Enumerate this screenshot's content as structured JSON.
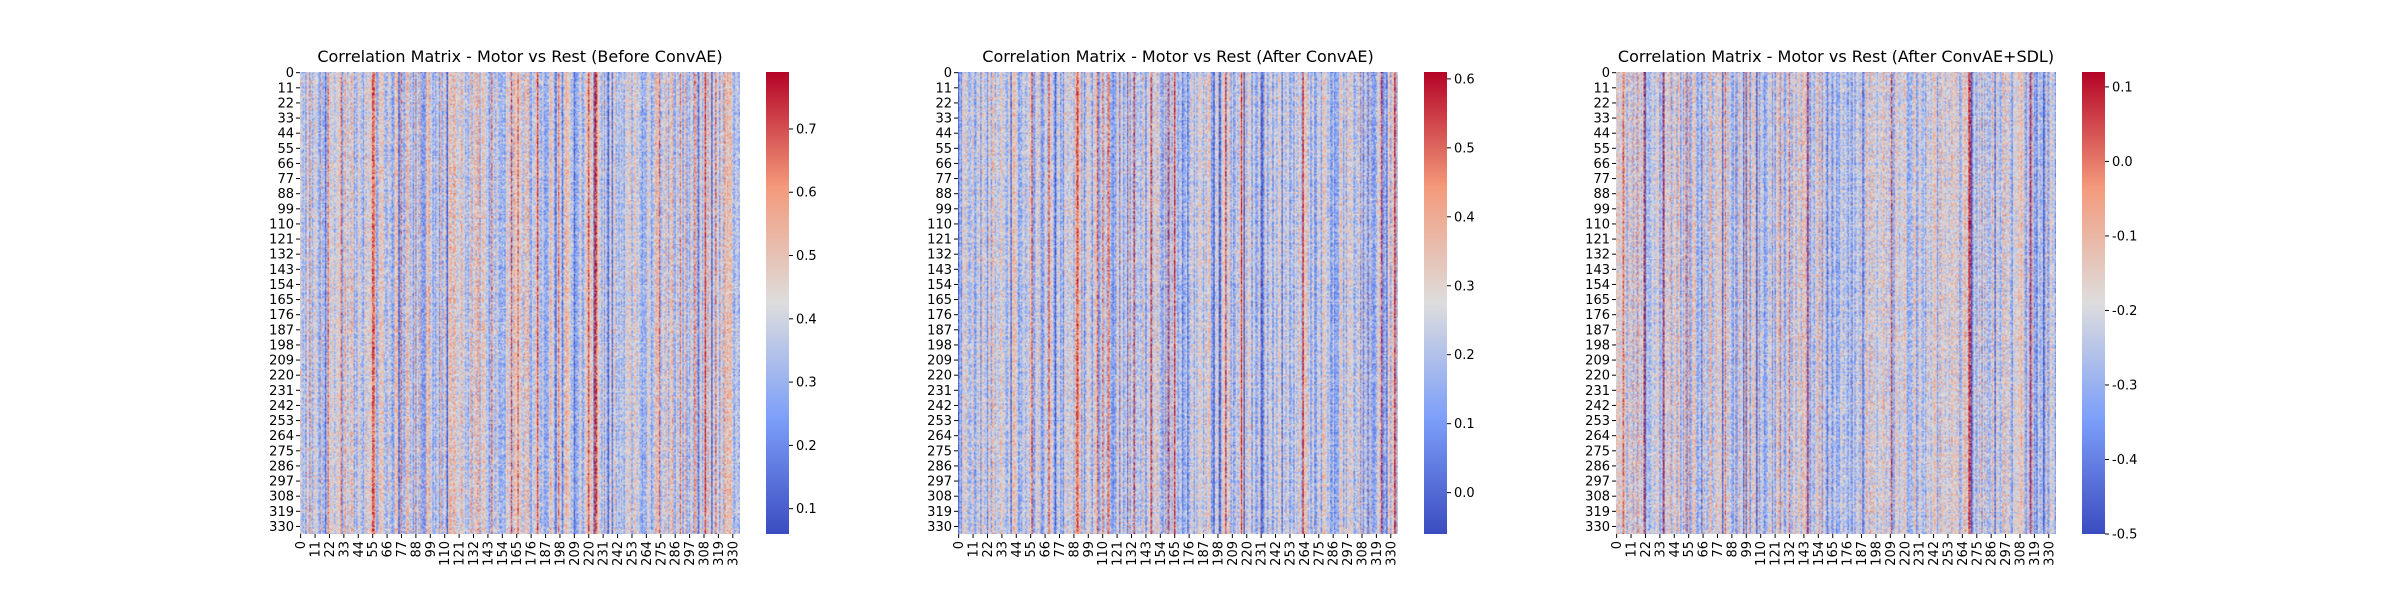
{
  "chart_data": [
    {
      "type": "heatmap",
      "title": "Correlation Matrix - Motor vs Rest (Before ConvAE)",
      "tick_labels": [
        "0",
        "11",
        "22",
        "33",
        "44",
        "55",
        "66",
        "77",
        "88",
        "99",
        "110",
        "121",
        "132",
        "143",
        "154",
        "165",
        "176",
        "187",
        "198",
        "209",
        "220",
        "231",
        "242",
        "253",
        "264",
        "275",
        "286",
        "297",
        "308",
        "319",
        "330"
      ],
      "matrix_size": 336,
      "colormap": "coolwarm",
      "colorbar": {
        "min": 0.06,
        "max": 0.79,
        "ticks": [
          0.1,
          0.2,
          0.3,
          0.4,
          0.5,
          0.6,
          0.7
        ],
        "tick_labels": [
          "0.1",
          "0.2",
          "0.3",
          "0.4",
          "0.5",
          "0.6",
          "0.7"
        ]
      },
      "base_value": 0.4
    },
    {
      "type": "heatmap",
      "title": "Correlation Matrix - Motor vs Rest (After ConvAE)",
      "tick_labels": [
        "0",
        "11",
        "22",
        "33",
        "44",
        "55",
        "66",
        "77",
        "88",
        "99",
        "110",
        "121",
        "132",
        "143",
        "154",
        "165",
        "176",
        "187",
        "198",
        "209",
        "220",
        "231",
        "242",
        "253",
        "264",
        "275",
        "286",
        "297",
        "308",
        "319",
        "330"
      ],
      "matrix_size": 336,
      "colormap": "coolwarm",
      "colorbar": {
        "min": -0.06,
        "max": 0.61,
        "ticks": [
          0.0,
          0.1,
          0.2,
          0.3,
          0.4,
          0.5,
          0.6
        ],
        "tick_labels": [
          "0.0",
          "0.1",
          "0.2",
          "0.3",
          "0.4",
          "0.5",
          "0.6"
        ]
      },
      "base_value": 0.22
    },
    {
      "type": "heatmap",
      "title": "Correlation Matrix - Motor vs Rest (After ConvAE+SDL)",
      "tick_labels": [
        "0",
        "11",
        "22",
        "33",
        "44",
        "55",
        "66",
        "77",
        "88",
        "99",
        "110",
        "121",
        "132",
        "143",
        "154",
        "165",
        "176",
        "187",
        "198",
        "209",
        "220",
        "231",
        "242",
        "253",
        "264",
        "275",
        "286",
        "297",
        "308",
        "319",
        "330"
      ],
      "matrix_size": 336,
      "colormap": "coolwarm",
      "colorbar": {
        "min": -0.5,
        "max": 0.12,
        "ticks": [
          -0.5,
          -0.4,
          -0.3,
          -0.2,
          -0.1,
          0.0,
          0.1
        ],
        "tick_labels": [
          "-0.5",
          "-0.4",
          "-0.3",
          "-0.2",
          "-0.1",
          "0.0",
          "0.1"
        ]
      },
      "base_value": -0.22
    }
  ]
}
